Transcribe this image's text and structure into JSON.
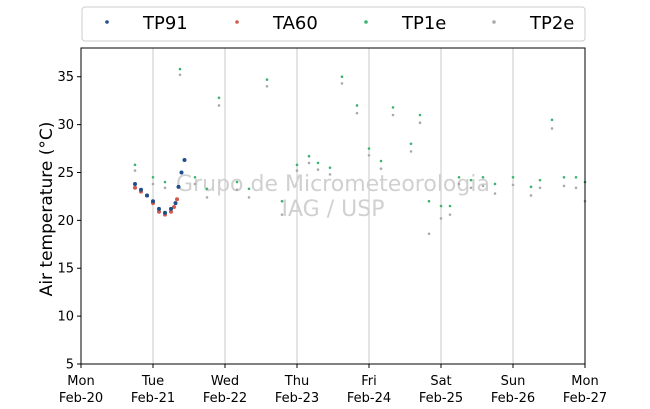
{
  "chart_data": {
    "type": "scatter",
    "title": "",
    "xlabel": "",
    "ylabel": "Air temperature (°C)",
    "ylim": [
      5,
      38
    ],
    "yticks": [
      5,
      10,
      15,
      20,
      25,
      30,
      35
    ],
    "xlim": [
      "2023-02-20",
      "2023-02-27"
    ],
    "xticks": [
      {
        "day": "Mon",
        "date": "Feb-20"
      },
      {
        "day": "Tue",
        "date": "Feb-21"
      },
      {
        "day": "Wed",
        "date": "Feb-22"
      },
      {
        "day": "Thu",
        "date": "Feb-23"
      },
      {
        "day": "Fri",
        "date": "Feb-24"
      },
      {
        "day": "Sat",
        "date": "Feb-25"
      },
      {
        "day": "Sun",
        "date": "Feb-26"
      },
      {
        "day": "Mon",
        "date": "Feb-27"
      }
    ],
    "grid": "vertical",
    "legend_position": "top",
    "watermark": [
      "Grupo de Micrometeorologia",
      "IAG / USP"
    ],
    "series": [
      {
        "name": "TP91",
        "color": "#1f4e8c",
        "x": [
          "2023-02-20 18:00",
          "2023-02-20 20:00",
          "2023-02-20 22:00",
          "2023-02-21 00:00",
          "2023-02-21 02:00",
          "2023-02-21 04:00",
          "2023-02-21 06:00",
          "2023-02-21 07:30",
          "2023-02-21 08:30",
          "2023-02-21 09:30",
          "2023-02-21 10:30"
        ],
        "y": [
          23.8,
          23.2,
          22.6,
          22.0,
          21.2,
          20.8,
          21.2,
          21.8,
          23.5,
          25.0,
          26.3
        ]
      },
      {
        "name": "TA60",
        "color": "#d15a4a",
        "x": [
          "2023-02-20 18:00",
          "2023-02-20 20:00",
          "2023-02-20 22:00",
          "2023-02-21 00:00",
          "2023-02-21 02:00",
          "2023-02-21 04:00",
          "2023-02-21 06:00",
          "2023-02-21 07:00",
          "2023-02-21 08:00"
        ],
        "y": [
          23.4,
          23.0,
          22.6,
          21.8,
          20.9,
          20.6,
          20.9,
          21.4,
          22.2
        ]
      },
      {
        "name": "TP1e",
        "color": "#3cb371",
        "x": [
          "2023-02-20 18:00",
          "2023-02-21 00:00",
          "2023-02-21 04:00",
          "2023-02-21 09:00",
          "2023-02-21 14:00",
          "2023-02-21 18:00",
          "2023-02-21 22:00",
          "2023-02-22 04:00",
          "2023-02-22 08:00",
          "2023-02-22 14:00",
          "2023-02-22 19:00",
          "2023-02-23 00:00",
          "2023-02-23 04:00",
          "2023-02-23 07:00",
          "2023-02-23 11:00",
          "2023-02-23 15:00",
          "2023-02-23 20:00",
          "2023-02-24 00:00",
          "2023-02-24 04:00",
          "2023-02-24 08:00",
          "2023-02-24 14:00",
          "2023-02-24 17:00",
          "2023-02-24 20:00",
          "2023-02-25 00:00",
          "2023-02-25 03:00",
          "2023-02-25 06:00",
          "2023-02-25 10:00",
          "2023-02-25 14:00",
          "2023-02-25 18:00",
          "2023-02-26 00:00",
          "2023-02-26 06:00",
          "2023-02-26 09:00",
          "2023-02-26 13:00",
          "2023-02-26 17:00",
          "2023-02-26 21:00",
          "2023-02-27 00:00"
        ],
        "y": [
          25.8,
          24.5,
          24.0,
          35.8,
          24.5,
          23.3,
          32.8,
          24.0,
          23.3,
          34.7,
          22.0,
          25.8,
          26.7,
          26.0,
          25.5,
          35.0,
          32.0,
          27.5,
          26.2,
          31.8,
          28.0,
          31.0,
          22.0,
          21.5,
          21.5,
          24.5,
          24.2,
          24.5,
          23.8,
          24.5,
          23.5,
          24.2,
          30.5,
          24.5,
          24.5,
          24.0
        ]
      },
      {
        "name": "TP2e",
        "color": "#aaaaaa",
        "x": [
          "2023-02-20 18:00",
          "2023-02-21 00:00",
          "2023-02-21 04:00",
          "2023-02-21 09:00",
          "2023-02-21 14:00",
          "2023-02-21 18:00",
          "2023-02-21 22:00",
          "2023-02-22 04:00",
          "2023-02-22 08:00",
          "2023-02-22 14:00",
          "2023-02-22 19:00",
          "2023-02-23 00:00",
          "2023-02-23 04:00",
          "2023-02-23 07:00",
          "2023-02-23 11:00",
          "2023-02-23 15:00",
          "2023-02-23 20:00",
          "2023-02-24 00:00",
          "2023-02-24 04:00",
          "2023-02-24 08:00",
          "2023-02-24 14:00",
          "2023-02-24 17:00",
          "2023-02-24 20:00",
          "2023-02-25 00:00",
          "2023-02-25 03:00",
          "2023-02-25 06:00",
          "2023-02-25 10:00",
          "2023-02-25 14:00",
          "2023-02-25 18:00",
          "2023-02-26 00:00",
          "2023-02-26 06:00",
          "2023-02-26 09:00",
          "2023-02-26 13:00",
          "2023-02-26 17:00",
          "2023-02-26 21:00",
          "2023-02-27 00:00"
        ],
        "y": [
          25.2,
          23.8,
          23.4,
          35.2,
          23.8,
          22.4,
          32.0,
          23.2,
          22.4,
          34.0,
          20.6,
          25.2,
          26.0,
          25.3,
          24.8,
          34.3,
          31.2,
          26.8,
          25.4,
          31.0,
          27.2,
          30.2,
          18.6,
          20.2,
          20.6,
          23.8,
          23.4,
          23.6,
          22.8,
          23.7,
          22.6,
          23.4,
          29.6,
          23.6,
          23.4,
          22.0
        ]
      }
    ]
  }
}
